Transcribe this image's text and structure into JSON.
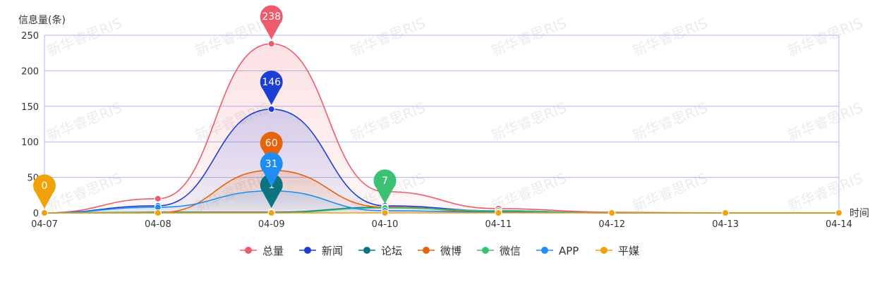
{
  "chart_data": {
    "type": "line",
    "ylabel": "信息量(条)",
    "xlabel": "时间",
    "categories": [
      "04-07",
      "04-08",
      "04-09",
      "04-10",
      "04-11",
      "04-12",
      "04-13",
      "04-14"
    ],
    "y_ticks": [
      0,
      50,
      100,
      150,
      200,
      250
    ],
    "ylim": [
      0,
      250
    ],
    "grid": true,
    "smooth": true,
    "legend_position": "bottom-center",
    "watermark": "新华睿思RIS",
    "series": [
      {
        "name": "总量",
        "color": "#ee5b6a",
        "values": [
          0,
          20,
          238,
          30,
          6,
          1,
          0,
          0
        ],
        "area": true,
        "marker": {
          "index": 2,
          "label": "238"
        }
      },
      {
        "name": "新闻",
        "color": "#1b3fd6",
        "values": [
          0,
          10,
          146,
          10,
          3,
          0,
          0,
          0
        ],
        "area": true,
        "marker": {
          "index": 2,
          "label": "146"
        }
      },
      {
        "name": "论坛",
        "color": "#0b7480",
        "values": [
          0,
          1,
          1,
          8,
          2,
          0,
          0,
          0
        ],
        "area": false,
        "marker": {
          "index": 2,
          "label": "1"
        }
      },
      {
        "name": "微博",
        "color": "#e8640a",
        "values": [
          0,
          0,
          60,
          8,
          1,
          0,
          0,
          0
        ],
        "area": true,
        "marker": {
          "index": 2,
          "label": "60"
        }
      },
      {
        "name": "微信",
        "color": "#3cc072",
        "values": [
          0,
          0,
          0,
          7,
          3,
          0,
          0,
          0
        ],
        "area": false,
        "marker": {
          "index": 3,
          "label": "7"
        }
      },
      {
        "name": "APP",
        "color": "#1f8ef2",
        "values": [
          0,
          8,
          31,
          3,
          1,
          0,
          0,
          0
        ],
        "area": true,
        "marker": {
          "index": 2,
          "label": "31"
        }
      },
      {
        "name": "平媒",
        "color": "#f1a20b",
        "values": [
          0,
          0,
          0,
          0,
          0,
          0,
          0,
          0
        ],
        "area": false,
        "marker": {
          "index": 0,
          "label": "0"
        }
      }
    ]
  }
}
